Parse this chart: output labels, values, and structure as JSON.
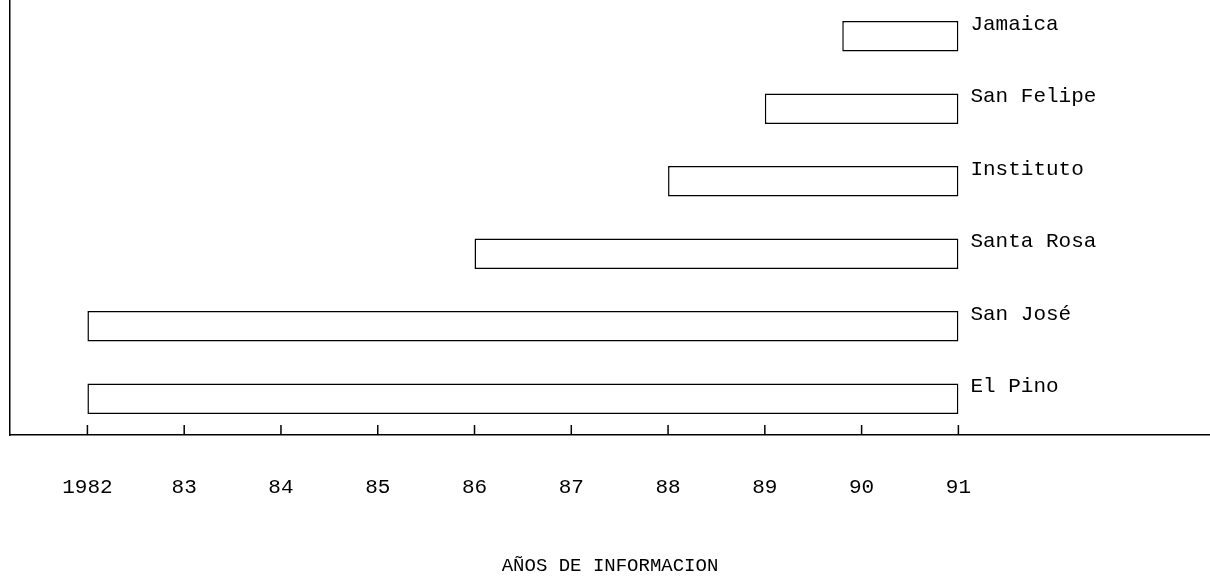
{
  "chart_data": {
    "type": "bar",
    "orientation": "horizontal",
    "xlabel": "AÑOS DE INFORMACION",
    "categories": [
      "Jamaica",
      "San Felipe",
      "Instituto",
      "Santa Rosa",
      "San José",
      "El Pino"
    ],
    "base": [
      1989.8,
      1989,
      1988,
      1986,
      1982,
      1982
    ],
    "values": [
      1.2,
      2,
      3,
      5,
      9,
      9
    ],
    "color": "#ffffff",
    "xlim": [
      1981.2,
      1993.6
    ],
    "xticks": [
      1982,
      {
        "value": 1983,
        "label": "83"
      },
      {
        "value": 1984,
        "label": "84"
      },
      {
        "value": 1985,
        "label": "85"
      },
      {
        "value": 1986,
        "label": "86"
      },
      {
        "value": 1987,
        "label": "87"
      },
      {
        "value": 1988,
        "label": "88"
      },
      {
        "value": 1989,
        "label": "89"
      },
      {
        "value": 1990,
        "label": "90"
      },
      {
        "value": 1991,
        "label": "91"
      }
    ],
    "tick_labels": "x",
    "grid": false,
    "legend": false
  }
}
